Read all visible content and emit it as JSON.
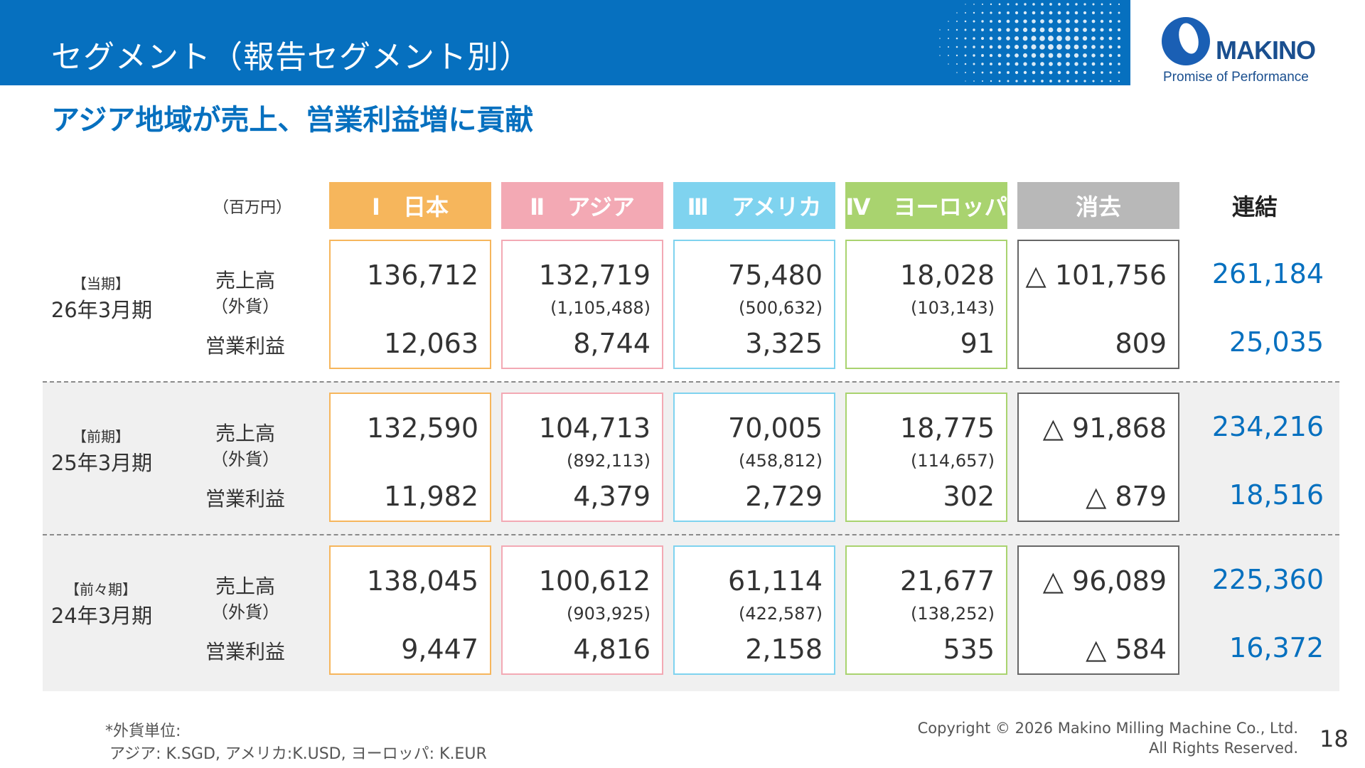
{
  "header": {
    "title": "セグメント（報告セグメント別）",
    "brand": "MAKINO",
    "tagline": "Promise of Performance"
  },
  "subtitle": "アジア地域が売上、営業利益増に貢献",
  "table": {
    "unit": "（百万円）",
    "columns": [
      {
        "label": "Ⅰ　日本",
        "color": "#f6b65c"
      },
      {
        "label": "Ⅱ　アジア",
        "color": "#f3a9b4"
      },
      {
        "label": "Ⅲ　アメリカ",
        "color": "#7fd3ef"
      },
      {
        "label": "Ⅳ　ヨーロッパ",
        "color": "#a9d36f"
      },
      {
        "label": "消去",
        "color": "#b8b8b8"
      }
    ],
    "consolidated_label": "連結",
    "row_labels": {
      "sales": "売上高",
      "fx": "（外貨）",
      "op": "営業利益"
    },
    "rows": [
      {
        "tag": "【当期】",
        "period": "26年3月期",
        "cells": [
          {
            "sales": "136,712",
            "fx": "",
            "op": "12,063"
          },
          {
            "sales": "132,719",
            "fx": "(1,105,488)",
            "op": "8,744"
          },
          {
            "sales": "75,480",
            "fx": "(500,632)",
            "op": "3,325"
          },
          {
            "sales": "18,028",
            "fx": "(103,143)",
            "op": "91"
          },
          {
            "sales": "△ 101,756",
            "fx": "",
            "op": "809"
          }
        ],
        "consolidated": {
          "sales": "261,184",
          "op": "25,035"
        }
      },
      {
        "tag": "【前期】",
        "period": "25年3月期",
        "cells": [
          {
            "sales": "132,590",
            "fx": "",
            "op": "11,982"
          },
          {
            "sales": "104,713",
            "fx": "(892,113)",
            "op": "4,379"
          },
          {
            "sales": "70,005",
            "fx": "(458,812)",
            "op": "2,729"
          },
          {
            "sales": "18,775",
            "fx": "(114,657)",
            "op": "302"
          },
          {
            "sales": "△ 91,868",
            "fx": "",
            "op": "△ 879"
          }
        ],
        "consolidated": {
          "sales": "234,216",
          "op": "18,516"
        }
      },
      {
        "tag": "【前々期】",
        "period": "24年3月期",
        "cells": [
          {
            "sales": "138,045",
            "fx": "",
            "op": "9,447"
          },
          {
            "sales": "100,612",
            "fx": "(903,925)",
            "op": "4,816"
          },
          {
            "sales": "61,114",
            "fx": "(422,587)",
            "op": "2,158"
          },
          {
            "sales": "21,677",
            "fx": "(138,252)",
            "op": "535"
          },
          {
            "sales": "△ 96,089",
            "fx": "",
            "op": "△ 584"
          }
        ],
        "consolidated": {
          "sales": "225,360",
          "op": "16,372"
        }
      }
    ]
  },
  "footnote": {
    "line1": "*外貨単位:",
    "line2": "アジア: K.SGD, アメリカ:K.USD, ヨーロッパ: K.EUR"
  },
  "copyright": {
    "line1": "Copyright © 2026 Makino Milling Machine Co., Ltd.",
    "line2": "All Rights Reserved."
  },
  "page_number": "18"
}
